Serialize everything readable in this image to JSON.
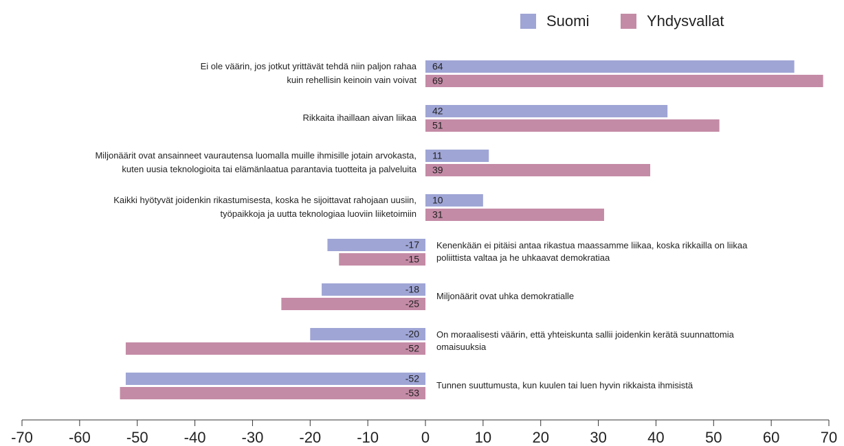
{
  "chart_data": {
    "type": "bar",
    "orientation": "horizontal",
    "categories": [
      [
        "Ei ole väärin, jos jotkut yrittävät tehdä niin paljon rahaa",
        "kuin rehellisin keinoin vain voivat"
      ],
      [
        "Rikkaita ihaillaan aivan liikaa"
      ],
      [
        "Miljonäärit ovat ansainneet vaurautensa luomalla muille ihmisille jotain arvokasta,",
        "kuten uusia teknologioita tai elämänlaatua parantavia tuotteita ja palveluita"
      ],
      [
        "Kaikki hyötyvät joidenkin rikastumisesta, koska he sijoittavat rahojaan uusiin,",
        "työpaikkoja ja uutta teknologiaa luoviin liiketoimiin"
      ],
      [
        "Kenenkään ei pitäisi antaa rikastua maassamme liikaa, koska rikkailla on liikaa",
        "poliittista valtaa ja he uhkaavat demokratiaa"
      ],
      [
        "Miljonäärit ovat uhka demokratialle"
      ],
      [
        "On moraalisesti väärin, että yhteiskunta sallii joidenkin kerätä suunnattomia",
        "omaisuuksia"
      ],
      [
        "Tunnen suuttumusta, kun kuulen tai luen hyvin rikkaista ihmisistä"
      ]
    ],
    "series": [
      {
        "name": "Suomi",
        "color": "#9fa5d5",
        "values": [
          64,
          42,
          11,
          10,
          -17,
          -18,
          -20,
          -52
        ]
      },
      {
        "name": "Yhdysvallat",
        "color": "#c48ba6",
        "values": [
          69,
          51,
          39,
          31,
          -15,
          -25,
          -52,
          -53
        ]
      }
    ],
    "xlim": [
      -70,
      70
    ],
    "xticks": [
      -70,
      -60,
      -50,
      -40,
      -30,
      -20,
      -10,
      0,
      10,
      20,
      30,
      40,
      50,
      60,
      70
    ],
    "legend": "top-right",
    "data_labels": true
  }
}
